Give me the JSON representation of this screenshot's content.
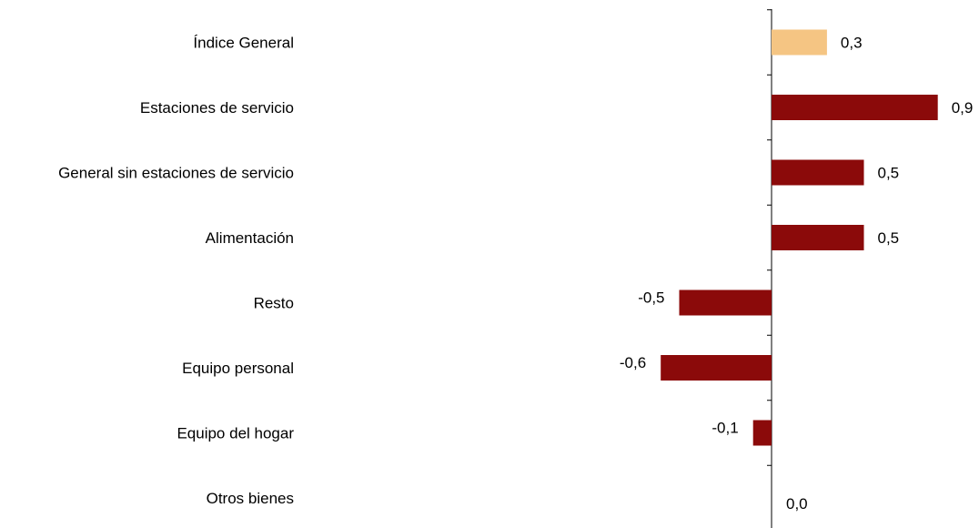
{
  "chart_data": {
    "type": "bar",
    "orientation": "horizontal",
    "categories": [
      "Índice General",
      "Estaciones de servicio",
      "General sin estaciones de servicio",
      "Alimentación",
      "Resto",
      "Equipo personal",
      "Equipo del hogar",
      "Otros bienes"
    ],
    "values": [
      0.3,
      0.9,
      0.5,
      0.5,
      -0.5,
      -0.6,
      -0.1,
      0.0
    ],
    "value_labels": [
      "0,3",
      "0,9",
      "0,5",
      "0,5",
      "-0,5",
      "-0,6",
      "-0,1",
      "0,0"
    ],
    "highlight_index": 0,
    "colors": {
      "highlight": "#F5C583",
      "default": "#8B0A0A",
      "axis": "#000000"
    },
    "xlim": [
      -4.2,
      1.1
    ],
    "grid": false,
    "legend": "none",
    "title": "",
    "xlabel": "",
    "ylabel": ""
  }
}
